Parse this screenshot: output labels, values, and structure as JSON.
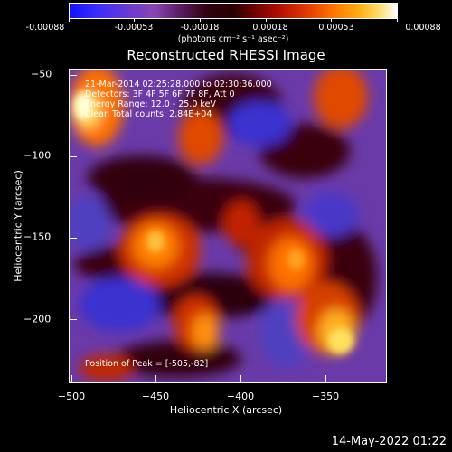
{
  "colorbar": {
    "tick_labels": [
      "-0.00088",
      "-0.00053",
      "-0.00018",
      "0.00018",
      "0.00053",
      "0.00088"
    ],
    "units": "(photons cm⁻² s⁻¹ asec⁻²)"
  },
  "title": "Reconstructed RHESSI Image",
  "info": {
    "time_range": "21-Mar-2014 02:25:28.000 to 02:30:36.000",
    "detectors": "Detectors: 3F 4F 5F 6F 7F 8F, Att 0",
    "energy": "Energy Range: 12.0 - 25.0 keV",
    "method": "Clean     Total counts: 2.84E+04",
    "peak": "Position of Peak = [-505,-82]"
  },
  "chart_data": {
    "type": "heatmap",
    "title": "Reconstructed RHESSI Image",
    "xlabel": "Heliocentric X (arcsec)",
    "ylabel": "Heliocentric Y (arcsec)",
    "xlim": [
      -503,
      -315
    ],
    "ylim": [
      -237,
      -47
    ],
    "x_ticks": [
      -500,
      -450,
      -400,
      -350
    ],
    "y_ticks": [
      -50,
      -100,
      -150,
      -200
    ],
    "colorbar_range": [
      -0.00088,
      0.00088
    ],
    "peak_position": [
      -505,
      -82
    ],
    "colormap": [
      "#1010ff",
      "#6a3ad0",
      "#300010",
      "#b01000",
      "#ff7000",
      "#ffd860",
      "#ffffff"
    ]
  },
  "x_tick_labels": [
    "−500",
    "−450",
    "−400",
    "−350"
  ],
  "y_tick_labels": [
    "−50",
    "−100",
    "−150",
    "−200"
  ],
  "timestamp": "14-May-2022 01:22"
}
